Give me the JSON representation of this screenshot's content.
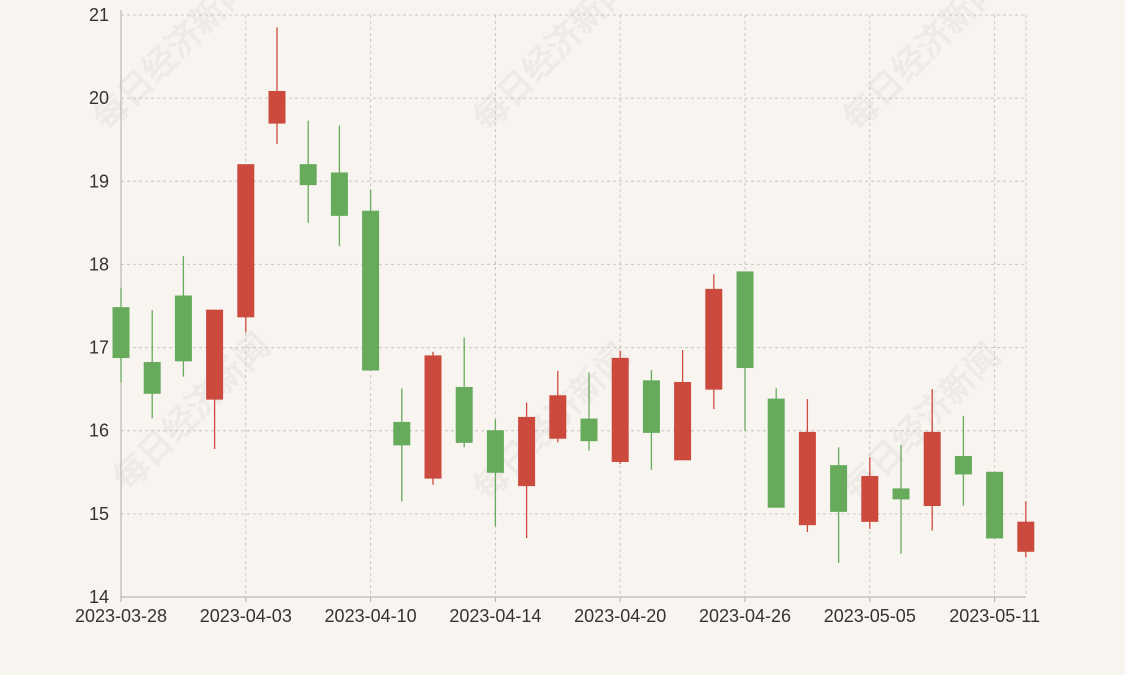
{
  "chart_data": {
    "type": "candlestick",
    "watermark": "每日经济新闻",
    "colors": {
      "up": "#cc4a3d",
      "down": "#67aa5c",
      "background": "#f8f5f1",
      "grid": "#c9c6c2"
    },
    "grid": true,
    "ylim": [
      14,
      21
    ],
    "yticks": [
      14,
      15,
      16,
      17,
      18,
      19,
      20,
      21
    ],
    "xtick_labels": [
      "2023-03-28",
      "2023-04-03",
      "2023-04-10",
      "2023-04-14",
      "2023-04-20",
      "2023-04-26",
      "2023-05-05",
      "2023-05-11"
    ],
    "xtick_indices": [
      0,
      4,
      8,
      12,
      16,
      20,
      24,
      28
    ],
    "candles": [
      {
        "date": "2023-03-28",
        "open": 17.48,
        "high": 17.72,
        "low": 16.58,
        "close": 16.88
      },
      {
        "date": "2023-03-29",
        "open": 16.82,
        "high": 17.45,
        "low": 16.15,
        "close": 16.45
      },
      {
        "date": "2023-03-30",
        "open": 17.62,
        "high": 18.1,
        "low": 16.65,
        "close": 16.84
      },
      {
        "date": "2023-03-31",
        "open": 16.38,
        "high": 17.45,
        "low": 15.78,
        "close": 17.45
      },
      {
        "date": "2023-04-03",
        "open": 17.37,
        "high": 19.2,
        "low": 17.18,
        "close": 19.2
      },
      {
        "date": "2023-04-04",
        "open": 19.7,
        "high": 20.85,
        "low": 19.45,
        "close": 20.08
      },
      {
        "date": "2023-04-06",
        "open": 19.2,
        "high": 19.73,
        "low": 18.5,
        "close": 18.96
      },
      {
        "date": "2023-04-07",
        "open": 19.1,
        "high": 19.67,
        "low": 18.22,
        "close": 18.59
      },
      {
        "date": "2023-04-10",
        "open": 18.64,
        "high": 18.9,
        "low": 16.73,
        "close": 16.73
      },
      {
        "date": "2023-04-11",
        "open": 16.1,
        "high": 16.51,
        "low": 15.15,
        "close": 15.83
      },
      {
        "date": "2023-04-12",
        "open": 15.43,
        "high": 16.95,
        "low": 15.35,
        "close": 16.9
      },
      {
        "date": "2023-04-13",
        "open": 16.52,
        "high": 17.12,
        "low": 15.8,
        "close": 15.86
      },
      {
        "date": "2023-04-14",
        "open": 16.0,
        "high": 16.14,
        "low": 14.85,
        "close": 15.5
      },
      {
        "date": "2023-04-17",
        "open": 15.34,
        "high": 16.34,
        "low": 14.71,
        "close": 16.16
      },
      {
        "date": "2023-04-18",
        "open": 15.91,
        "high": 16.72,
        "low": 15.86,
        "close": 16.42
      },
      {
        "date": "2023-04-19",
        "open": 16.14,
        "high": 16.7,
        "low": 15.76,
        "close": 15.88
      },
      {
        "date": "2023-04-20",
        "open": 15.63,
        "high": 16.96,
        "low": 15.6,
        "close": 16.87
      },
      {
        "date": "2023-04-21",
        "open": 16.6,
        "high": 16.73,
        "low": 15.53,
        "close": 15.98
      },
      {
        "date": "2023-04-24",
        "open": 15.65,
        "high": 16.97,
        "low": 15.65,
        "close": 16.58
      },
      {
        "date": "2023-04-25",
        "open": 16.5,
        "high": 17.88,
        "low": 16.26,
        "close": 17.7
      },
      {
        "date": "2023-04-26",
        "open": 17.91,
        "high": 17.91,
        "low": 16.0,
        "close": 16.76
      },
      {
        "date": "2023-04-27",
        "open": 16.38,
        "high": 16.51,
        "low": 15.08,
        "close": 15.08
      },
      {
        "date": "2023-04-28",
        "open": 14.87,
        "high": 16.38,
        "low": 14.78,
        "close": 15.98
      },
      {
        "date": "2023-05-04",
        "open": 15.58,
        "high": 15.8,
        "low": 14.41,
        "close": 15.03
      },
      {
        "date": "2023-05-05",
        "open": 14.91,
        "high": 15.68,
        "low": 14.82,
        "close": 15.45
      },
      {
        "date": "2023-05-08",
        "open": 15.3,
        "high": 15.83,
        "low": 14.52,
        "close": 15.18
      },
      {
        "date": "2023-05-09",
        "open": 15.1,
        "high": 16.5,
        "low": 14.8,
        "close": 15.98
      },
      {
        "date": "2023-05-10",
        "open": 15.69,
        "high": 16.18,
        "low": 15.1,
        "close": 15.48
      },
      {
        "date": "2023-05-11",
        "open": 15.5,
        "high": 15.5,
        "low": 14.71,
        "close": 14.71
      },
      {
        "date": "2023-05-12",
        "open": 14.55,
        "high": 15.15,
        "low": 14.48,
        "close": 14.9
      }
    ]
  }
}
